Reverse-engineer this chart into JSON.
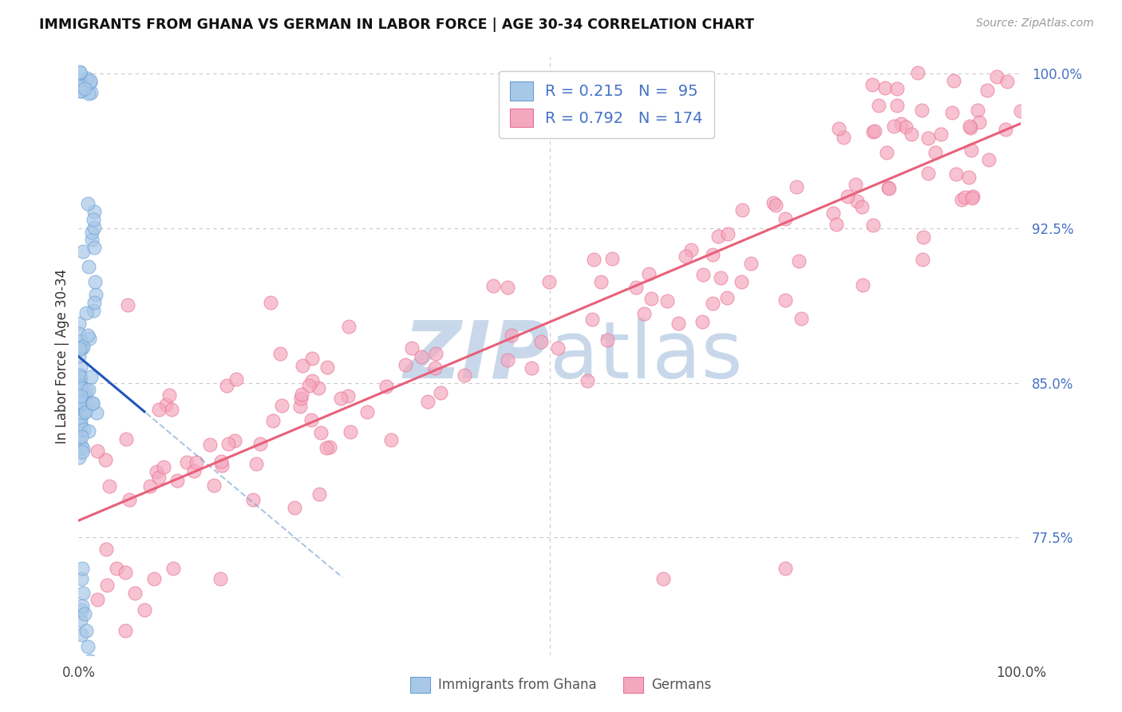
{
  "title": "IMMIGRANTS FROM GHANA VS GERMAN IN LABOR FORCE | AGE 30-34 CORRELATION CHART",
  "source_text": "Source: ZipAtlas.com",
  "ylabel": "In Labor Force | Age 30-34",
  "xlim": [
    0.0,
    1.0
  ],
  "ylim": [
    0.718,
    1.008
  ],
  "yticks": [
    0.775,
    0.85,
    0.925,
    1.0
  ],
  "ytick_labels": [
    "77.5%",
    "85.0%",
    "92.5%",
    "100.0%"
  ],
  "ghana_color": "#a8c8e8",
  "german_color": "#f4a8c0",
  "ghana_edge": "#6a9fd4",
  "german_edge": "#e87090",
  "trend_blue": "#2255bb",
  "trend_blue_dash": "#6699cc",
  "trend_pink": "#e8607a",
  "grid_color": "#bbbbbb",
  "text_color_blue": "#4472c4",
  "r_ghana": 0.215,
  "n_ghana": 95,
  "r_german": 0.792,
  "n_german": 174,
  "watermark_zip": "ZIP",
  "watermark_atlas": "atlas",
  "watermark_color": "#c8d8ea",
  "legend_box_color": "#e8e8e8"
}
